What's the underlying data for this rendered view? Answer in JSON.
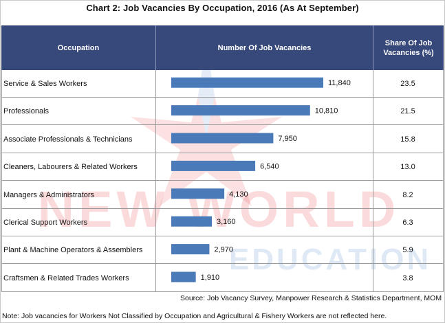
{
  "title": "Chart 2: Job Vacancies By Occupation, 2016 (As At September)",
  "columns": {
    "occupation": "Occupation",
    "vacancies": "Number Of Job Vacancies",
    "share_line1": "Share Of Job",
    "share_line2": "Vacancies (%)"
  },
  "source": "Source: Job Vacancy Survey, Manpower Research & Statistics Department, MOM",
  "note": "Note: Job vacancies for Workers Not Classified by Occupation and Agricultural & Fishery Workers are not reflected here.",
  "watermark": {
    "line1": "NEW WORLD",
    "line2": "EDUCATION"
  },
  "colors": {
    "header": "#37487a",
    "bar": "#4a7ab8",
    "grid": "#9a9a9a"
  },
  "chart_data": {
    "type": "bar",
    "orientation": "horizontal",
    "categories": [
      "Service & Sales Workers",
      "Professionals",
      "Associate Professionals & Technicians",
      "Cleaners, Labourers & Related Workers",
      "Managers & Administrators",
      "Clerical Support Workers",
      "Plant & Machine Operators & Assemblers",
      "Craftsmen & Related Trades Workers"
    ],
    "values": [
      11840,
      10810,
      7950,
      6540,
      4130,
      3160,
      2970,
      1910
    ],
    "value_labels": [
      "11,840",
      "10,810",
      "7,950",
      "6,540",
      "4,130",
      "3,160",
      "2,970",
      "1,910"
    ],
    "share": [
      "23.5",
      "21.5",
      "15.8",
      "13.0",
      "8.2",
      "6.3",
      "5.9",
      "3.8"
    ],
    "xlim": [
      0,
      11840
    ],
    "grid": false,
    "legend": "none"
  }
}
